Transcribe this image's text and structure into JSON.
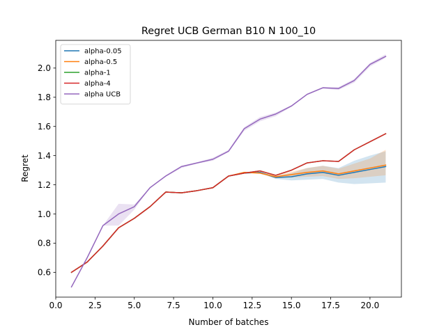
{
  "chart_data": {
    "type": "line",
    "title": "Regret UCB German B10 N 100_10",
    "xlabel": "Number of batches",
    "ylabel": "Regret",
    "xlim": [
      0.0,
      22.0
    ],
    "ylim": [
      0.43,
      2.19
    ],
    "xticks": [
      0.0,
      2.5,
      5.0,
      7.5,
      10.0,
      12.5,
      15.0,
      17.5,
      20.0
    ],
    "yticks": [
      0.6,
      0.8,
      1.0,
      1.2,
      1.4,
      1.6,
      1.8,
      2.0
    ],
    "xtick_labels": [
      "0.0",
      "2.5",
      "5.0",
      "7.5",
      "10.0",
      "12.5",
      "15.0",
      "17.5",
      "20.0"
    ],
    "ytick_labels": [
      "0.6",
      "0.8",
      "1.0",
      "1.2",
      "1.4",
      "1.6",
      "1.8",
      "2.0"
    ],
    "grid": false,
    "legend_position": "top-left",
    "x": [
      1,
      2,
      3,
      4,
      5,
      6,
      7,
      8,
      9,
      10,
      11,
      12,
      13,
      14,
      15,
      16,
      17,
      18,
      19,
      20,
      21
    ],
    "series": [
      {
        "name": "alpha-0.05",
        "color": "#1f77b4",
        "values": [
          0.6,
          0.67,
          0.78,
          0.905,
          0.97,
          1.05,
          1.15,
          1.145,
          1.16,
          1.18,
          1.26,
          1.28,
          1.285,
          1.25,
          1.255,
          1.275,
          1.285,
          1.265,
          1.285,
          1.305,
          1.325
        ],
        "lower": [
          0.6,
          0.67,
          0.78,
          0.905,
          0.97,
          1.05,
          1.15,
          1.145,
          1.16,
          1.18,
          1.26,
          1.28,
          1.28,
          1.24,
          1.23,
          1.235,
          1.24,
          1.215,
          1.205,
          1.21,
          1.215
        ],
        "upper": [
          0.6,
          0.67,
          0.78,
          0.905,
          0.97,
          1.05,
          1.15,
          1.145,
          1.16,
          1.18,
          1.26,
          1.28,
          1.29,
          1.26,
          1.28,
          1.315,
          1.33,
          1.315,
          1.365,
          1.4,
          1.43
        ]
      },
      {
        "name": "alpha-0.5",
        "color": "#ff7f0e",
        "values": [
          0.6,
          0.67,
          0.78,
          0.905,
          0.97,
          1.05,
          1.15,
          1.145,
          1.16,
          1.18,
          1.26,
          1.285,
          1.28,
          1.255,
          1.27,
          1.285,
          1.295,
          1.275,
          1.295,
          1.315,
          1.335
        ],
        "lower": [
          0.6,
          0.67,
          0.78,
          0.905,
          0.97,
          1.05,
          1.15,
          1.145,
          1.16,
          1.18,
          1.26,
          1.28,
          1.275,
          1.245,
          1.25,
          1.255,
          1.26,
          1.24,
          1.245,
          1.255,
          1.265
        ],
        "upper": [
          0.6,
          0.67,
          0.78,
          0.905,
          0.97,
          1.05,
          1.15,
          1.145,
          1.16,
          1.18,
          1.26,
          1.29,
          1.285,
          1.265,
          1.29,
          1.315,
          1.33,
          1.31,
          1.345,
          1.38,
          1.44
        ]
      },
      {
        "name": "alpha-1",
        "color": "#2ca02c",
        "values": [
          0.6,
          0.67,
          0.78,
          0.905,
          0.97,
          1.05,
          1.15,
          1.145,
          1.16,
          1.18,
          1.26,
          1.28,
          1.295,
          1.265,
          1.3,
          1.35,
          1.365,
          1.36,
          1.44,
          1.495,
          1.55
        ]
      },
      {
        "name": "alpha-4",
        "color": "#d62728",
        "values": [
          0.6,
          0.67,
          0.78,
          0.905,
          0.97,
          1.05,
          1.15,
          1.145,
          1.16,
          1.18,
          1.26,
          1.28,
          1.295,
          1.265,
          1.3,
          1.35,
          1.365,
          1.36,
          1.44,
          1.495,
          1.55
        ]
      },
      {
        "name": "alpha UCB",
        "color": "#9467bd",
        "values": [
          0.5,
          0.7,
          0.92,
          1.0,
          1.05,
          1.18,
          1.26,
          1.325,
          1.35,
          1.375,
          1.43,
          1.585,
          1.65,
          1.685,
          1.74,
          1.82,
          1.865,
          1.86,
          1.915,
          2.025,
          2.08
        ],
        "lower": [
          0.5,
          0.7,
          0.92,
          0.92,
          1.03,
          1.18,
          1.255,
          1.315,
          1.345,
          1.365,
          1.425,
          1.57,
          1.635,
          1.67,
          1.735,
          1.815,
          1.86,
          1.85,
          1.9,
          2.01,
          2.07
        ],
        "upper": [
          0.5,
          0.7,
          0.92,
          1.07,
          1.065,
          1.18,
          1.265,
          1.33,
          1.355,
          1.385,
          1.44,
          1.595,
          1.665,
          1.695,
          1.745,
          1.825,
          1.87,
          1.87,
          1.925,
          2.035,
          2.095
        ]
      }
    ]
  }
}
